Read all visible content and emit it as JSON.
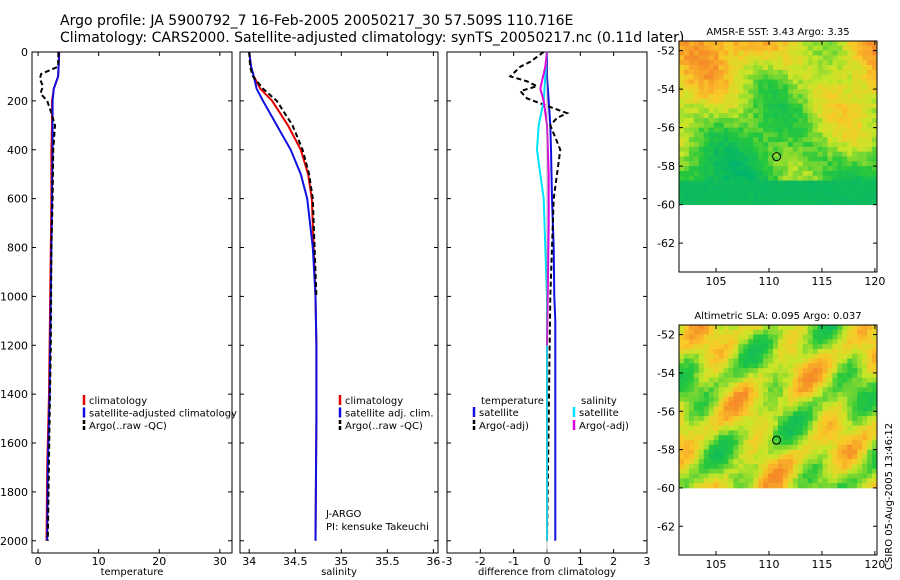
{
  "title_line1": "Argo profile: JA 5900792_7 16-Feb-2005 20050217_30 57.509S 110.716E",
  "title_line2": "Climatology: CARS2000. Satellite-adjusted climatology: synTS_20050217.nc (0.11d later)",
  "side_credit": "CSIRO 05-Aug-2005 13:46:12",
  "colors": {
    "climatology": "#e00000",
    "satellite": "#1010e0",
    "argo": "#000000",
    "salinity_sat": "#00e0ff",
    "salinity_argo": "#e000e0"
  },
  "chart_data": [
    {
      "type": "line",
      "name": "temperature-profile",
      "xlabel": "temperature",
      "xlim": [
        -1,
        32
      ],
      "ylim": [
        2050,
        0
      ],
      "xticks": [
        0,
        10,
        20,
        30
      ],
      "xtick_labels": [
        "0",
        "10",
        "20",
        "30"
      ],
      "yticks": [
        0,
        200,
        400,
        600,
        800,
        1000,
        1200,
        1400,
        1600,
        1800,
        2000
      ],
      "ytick_labels": [
        "0",
        "200",
        "400",
        "600",
        "800",
        "1000",
        "1200",
        "1400",
        "1600",
        "1800",
        "2000"
      ],
      "legend": [
        "climatology",
        "satellite-adjusted climatology",
        "Argo(..raw -QC)"
      ],
      "series": [
        {
          "name": "climatology",
          "color": "#e00000",
          "x": [
            3.5,
            3.4,
            3.3,
            2.6,
            2.3,
            2.3,
            2.2,
            2.2,
            2.1,
            2.0,
            1.9,
            1.8,
            1.5,
            1.4
          ],
          "y": [
            0,
            50,
            100,
            150,
            200,
            300,
            400,
            600,
            800,
            1000,
            1200,
            1400,
            1700,
            2000
          ]
        },
        {
          "name": "satellite-adjusted climatology",
          "color": "#1010e0",
          "x": [
            3.45,
            3.4,
            3.3,
            2.6,
            2.4,
            2.4,
            2.4,
            2.3,
            2.2,
            2.1,
            2.0,
            1.9,
            1.6,
            1.5
          ],
          "y": [
            0,
            50,
            100,
            150,
            200,
            300,
            400,
            600,
            800,
            1000,
            1200,
            1400,
            1700,
            2000
          ]
        },
        {
          "name": "Argo(..raw -QC)",
          "color": "#000000",
          "x": [
            3.35,
            3.3,
            0.5,
            0.3,
            0.8,
            0.4,
            1.5,
            2.2,
            2.8,
            2.5,
            2.4,
            2.2,
            2.1,
            1.9,
            1.6
          ],
          "y": [
            0,
            60,
            90,
            110,
            140,
            170,
            200,
            250,
            300,
            400,
            600,
            800,
            1200,
            1500,
            2000
          ]
        }
      ]
    },
    {
      "type": "line",
      "name": "salinity-profile",
      "xlabel": "salinity",
      "xlim": [
        33.9,
        36.05
      ],
      "ylim": [
        2050,
        0
      ],
      "xticks": [
        34,
        34.5,
        35,
        35.5,
        36
      ],
      "xtick_labels": [
        "34",
        "34.5",
        "35",
        "35.5",
        "36"
      ],
      "legend": [
        "climatology",
        "satellite adj. clim.",
        "Argo(..raw -QC)"
      ],
      "annotations": [
        "J-ARGO",
        "PI: kensuke Takeuchi"
      ],
      "series": [
        {
          "name": "climatology",
          "color": "#e00000",
          "x": [
            34.0,
            34.02,
            34.05,
            34.12,
            34.25,
            34.42,
            34.56,
            34.64,
            34.68,
            34.7,
            34.72,
            34.73,
            34.73,
            34.72
          ],
          "y": [
            0,
            60,
            100,
            150,
            200,
            300,
            400,
            500,
            600,
            800,
            1000,
            1200,
            1500,
            2000
          ]
        },
        {
          "name": "satellite adj. clim.",
          "color": "#1010e0",
          "x": [
            34.0,
            34.02,
            34.05,
            34.08,
            34.15,
            34.3,
            34.45,
            34.56,
            34.63,
            34.69,
            34.72,
            34.73,
            34.73,
            34.72
          ],
          "y": [
            0,
            60,
            100,
            150,
            200,
            300,
            400,
            500,
            600,
            800,
            1000,
            1200,
            1500,
            2000
          ]
        },
        {
          "name": "Argo(..raw -QC)",
          "color": "#000000",
          "x": [
            34.0,
            34.01,
            34.04,
            34.15,
            34.3,
            34.47,
            34.58,
            34.65,
            34.69,
            34.71,
            34.73
          ],
          "y": [
            0,
            60,
            100,
            150,
            200,
            300,
            400,
            500,
            600,
            800,
            1000
          ]
        }
      ]
    },
    {
      "type": "line",
      "name": "difference-profile",
      "xlabel": "difference from climatology",
      "xlim": [
        -3,
        3
      ],
      "ylim": [
        2050,
        0
      ],
      "xticks": [
        -3,
        -2,
        -1,
        0,
        1,
        2,
        3
      ],
      "xtick_labels": [
        "-3",
        "-2",
        "-1",
        "0",
        "1",
        "2",
        "3"
      ],
      "legend_left_title": "temperature",
      "legend_left": [
        "satellite",
        "Argo(-adj)"
      ],
      "legend_right_title": "salinity",
      "legend_right": [
        "satellite",
        "Argo(-adj)"
      ],
      "series": [
        {
          "name": "temperature satellite",
          "color": "#1010e0",
          "x": [
            0,
            0,
            0.05,
            0.1,
            0.12,
            0.15,
            0.2,
            0.22,
            0.25,
            0.25,
            0.25
          ],
          "y": [
            0,
            100,
            200,
            300,
            400,
            600,
            800,
            1000,
            1100,
            1500,
            2000
          ]
        },
        {
          "name": "temperature Argo(-adj)",
          "color": "#000000",
          "x": [
            -0.1,
            -0.5,
            -0.8,
            -1.1,
            -0.6,
            -0.3,
            -0.8,
            -0.6,
            0.0,
            0.6,
            0.3,
            0.1,
            0.25,
            0.4,
            0.3,
            0.2,
            0.15,
            0.1,
            0.05,
            0.0
          ],
          "y": [
            0,
            40,
            60,
            100,
            120,
            140,
            160,
            190,
            220,
            250,
            270,
            300,
            350,
            400,
            500,
            600,
            800,
            1000,
            1500,
            2000
          ]
        },
        {
          "name": "salinity satellite",
          "color": "#00e0ff",
          "x": [
            0,
            -0.05,
            -0.1,
            -0.25,
            -0.3,
            -0.2,
            -0.1,
            -0.05,
            0,
            0
          ],
          "y": [
            0,
            100,
            200,
            300,
            400,
            500,
            600,
            800,
            1000,
            2000
          ]
        },
        {
          "name": "salinity Argo(-adj)",
          "color": "#e000e0",
          "x": [
            0,
            -0.05,
            -0.2,
            -0.1,
            0,
            0.05,
            0.05,
            0.02,
            0
          ],
          "y": [
            0,
            60,
            150,
            200,
            300,
            500,
            700,
            1000,
            1200
          ]
        }
      ]
    },
    {
      "type": "heatmap",
      "name": "sst-map",
      "title": "AMSR-E SST: 3.43 Argo: 3.35",
      "xlim": [
        101.5,
        120.2
      ],
      "ylim": [
        -63.5,
        -51.5
      ],
      "xticks": [
        105,
        110,
        115,
        120
      ],
      "xtick_labels": [
        "105",
        "110",
        "115",
        "120"
      ],
      "yticks": [
        -52,
        -54,
        -56,
        -58,
        -60,
        -62
      ],
      "ytick_labels": [
        "-52",
        "-54",
        "-56",
        "-58",
        "-60",
        "-62"
      ],
      "data_extent_lat": [
        -60,
        -51.5
      ],
      "marker": {
        "lon": 110.716,
        "lat": -57.509
      }
    },
    {
      "type": "heatmap",
      "name": "sla-map",
      "title": "Altimetric SLA: 0.095 Argo: 0.037",
      "xlim": [
        101.5,
        120.2
      ],
      "ylim": [
        -63.5,
        -51.5
      ],
      "xticks": [
        105,
        110,
        115,
        120
      ],
      "xtick_labels": [
        "105",
        "110",
        "115",
        "120"
      ],
      "yticks": [
        -52,
        -54,
        -56,
        -58,
        -60,
        -62
      ],
      "ytick_labels": [
        "-52",
        "-54",
        "-56",
        "-58",
        "-60",
        "-62"
      ],
      "data_extent_lat": [
        -60,
        -51.5
      ],
      "marker": {
        "lon": 110.716,
        "lat": -57.509
      }
    }
  ]
}
